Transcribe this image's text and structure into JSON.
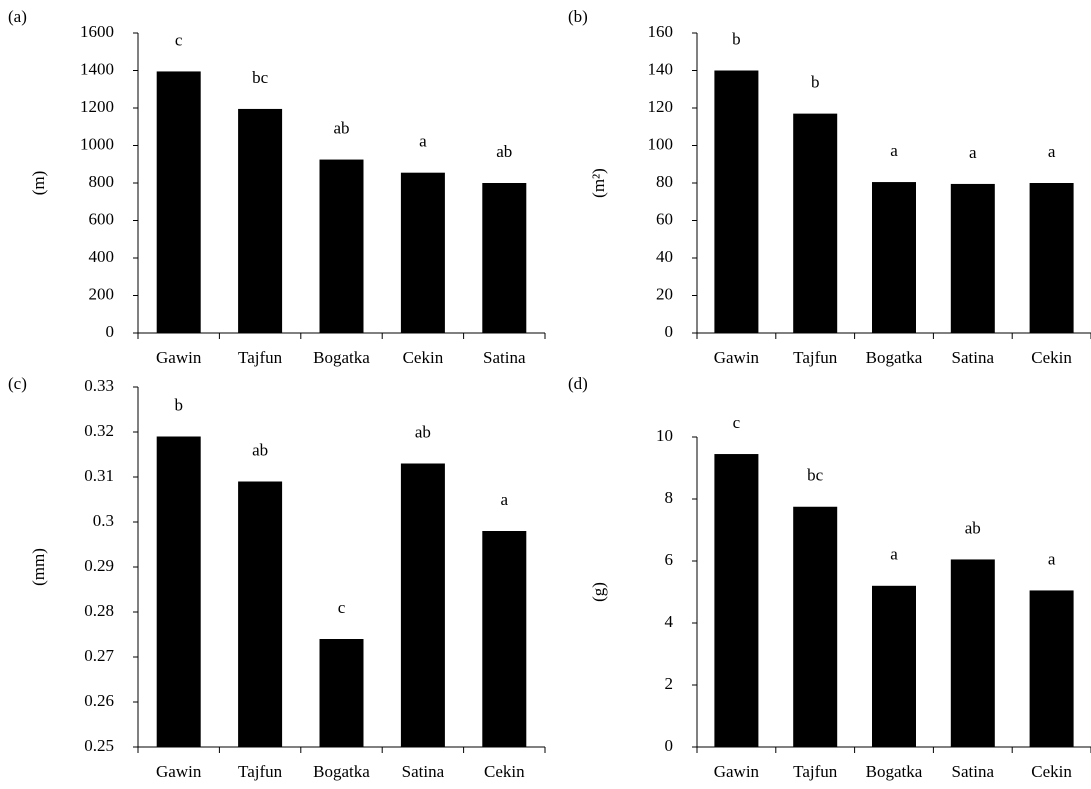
{
  "chart_data": [
    {
      "type": "bar",
      "panel": "(a)",
      "y_label": "(m)",
      "categories": [
        "Gawin",
        "Tajfun",
        "Bogatka",
        "Cekin",
        "Satina"
      ],
      "values": [
        1395,
        1195,
        925,
        855,
        800
      ],
      "letters": [
        "c",
        "bc",
        "ab",
        "a",
        "ab"
      ],
      "color": "#000000",
      "ylim": [
        0,
        1600
      ],
      "yticks": [
        0,
        200,
        400,
        600,
        800,
        1000,
        1200,
        1400,
        1600
      ],
      "grid": false
    },
    {
      "type": "bar",
      "panel": "(b)",
      "y_label": "(m²)",
      "categories": [
        "Gawin",
        "Tajfun",
        "Bogatka",
        "Satina",
        "Cekin"
      ],
      "values": [
        140,
        117,
        80.5,
        79.5,
        80
      ],
      "letters": [
        "b",
        "b",
        "a",
        "a",
        "a"
      ],
      "color": "#000000",
      "ylim": [
        0,
        160
      ],
      "yticks": [
        0,
        20,
        40,
        60,
        80,
        100,
        120,
        140,
        160
      ],
      "grid": false
    },
    {
      "type": "bar",
      "panel": "(c)",
      "y_label": "(mm)",
      "categories": [
        "Gawin",
        "Tajfun",
        "Bogatka",
        "Satina",
        "Cekin"
      ],
      "values": [
        0.319,
        0.309,
        0.274,
        0.313,
        0.298
      ],
      "letters": [
        "b",
        "ab",
        "c",
        "ab",
        "a"
      ],
      "color": "#000000",
      "ylim": [
        0.25,
        0.33
      ],
      "yticks": [
        0.25,
        0.26,
        0.27,
        0.28,
        0.29,
        0.3,
        0.31,
        0.32,
        0.33
      ],
      "grid": false
    },
    {
      "type": "bar",
      "panel": "(d)",
      "y_label": "(g)",
      "categories": [
        "Gawin",
        "Tajfun",
        "Bogatka",
        "Satina",
        "Cekin"
      ],
      "values": [
        9.45,
        7.75,
        5.2,
        6.05,
        5.05
      ],
      "letters": [
        "c",
        "bc",
        "a",
        "ab",
        "a"
      ],
      "color": "#000000",
      "ylim": [
        0,
        10
      ],
      "yticks": [
        0,
        2,
        4,
        6,
        8,
        10
      ],
      "grid": false
    }
  ]
}
